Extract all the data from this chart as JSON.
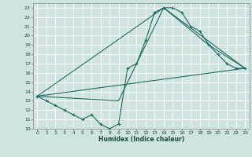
{
  "title": "",
  "xlabel": "Humidex (Indice chaleur)",
  "xlim": [
    -0.5,
    23.5
  ],
  "ylim": [
    10,
    23.5
  ],
  "yticks": [
    10,
    11,
    12,
    13,
    14,
    15,
    16,
    17,
    18,
    19,
    20,
    21,
    22,
    23
  ],
  "xticks": [
    0,
    1,
    2,
    3,
    4,
    5,
    6,
    7,
    8,
    9,
    10,
    11,
    12,
    13,
    14,
    15,
    16,
    17,
    18,
    19,
    20,
    21,
    22,
    23
  ],
  "bg_color": "#cfe4e1",
  "line_color": "#1a6b60",
  "grid_color": "#ffffff",
  "line_main": {
    "x": [
      0,
      1,
      2,
      3,
      4,
      5,
      6,
      7,
      8,
      9,
      10,
      11,
      12,
      13,
      14,
      15,
      16,
      17,
      18,
      19,
      20,
      21,
      22,
      23
    ],
    "y": [
      13.5,
      13.0,
      12.5,
      12.0,
      11.5,
      11.0,
      11.5,
      10.5,
      10.0,
      10.5,
      16.5,
      17.0,
      19.5,
      22.5,
      23.0,
      23.0,
      22.5,
      21.0,
      20.5,
      19.0,
      18.0,
      17.0,
      16.5,
      16.5
    ]
  },
  "line_tri1": {
    "x": [
      0,
      9,
      14,
      23
    ],
    "y": [
      13.5,
      13.0,
      23.0,
      16.5
    ]
  },
  "line_tri2": {
    "x": [
      0,
      23
    ],
    "y": [
      13.5,
      16.5
    ]
  },
  "line_tri3": {
    "x": [
      0,
      14,
      19,
      23
    ],
    "y": [
      13.5,
      23.0,
      19.0,
      16.5
    ]
  }
}
